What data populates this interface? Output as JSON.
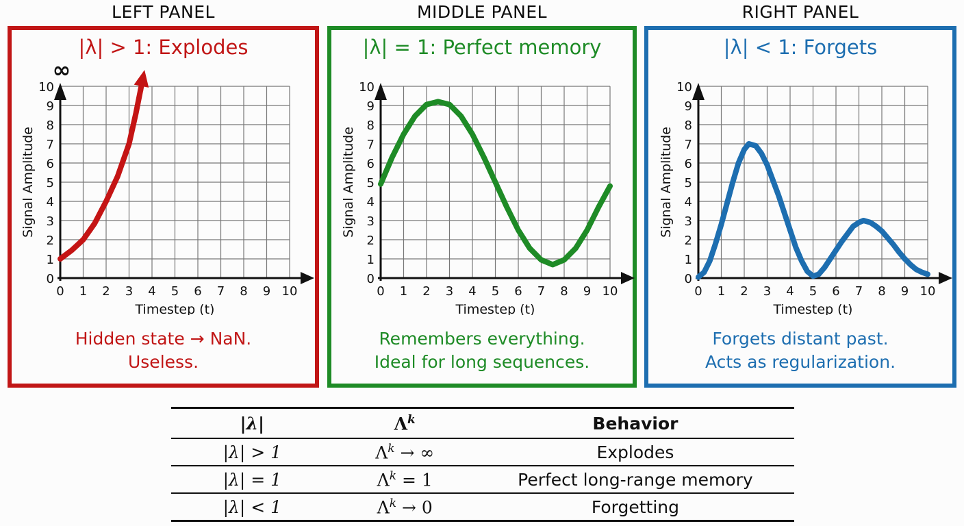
{
  "panels": [
    {
      "header": "LEFT PANEL",
      "title": "|λ| > 1: Explodes",
      "color": "#c11616",
      "caption_line1": "Hidden state → NaN.",
      "caption_line2": "Useless."
    },
    {
      "header": "MIDDLE PANEL",
      "title": "|λ| = 1: Perfect memory",
      "color": "#1e8b26",
      "caption_line1": "Remembers everything.",
      "caption_line2": "Ideal for long sequences."
    },
    {
      "header": "RIGHT PANEL",
      "title": "|λ| < 1: Forgets",
      "color": "#1d6eb0",
      "caption_line1": "Forgets distant past.",
      "caption_line2": "Acts as regularization."
    }
  ],
  "chart_data": [
    {
      "type": "line",
      "title": "|λ| > 1: Explodes",
      "xlabel": "Timestep (t)",
      "ylabel": "Signal Amplitude",
      "xlim": [
        0,
        10
      ],
      "ylim": [
        0,
        10
      ],
      "xticks": [
        0,
        1,
        2,
        3,
        4,
        5,
        6,
        7,
        8,
        9,
        10
      ],
      "yticks": [
        0,
        1,
        2,
        3,
        4,
        5,
        6,
        7,
        8,
        9,
        10
      ],
      "grid": true,
      "legend": "none",
      "color": "#c41414",
      "line_width": 8,
      "end_arrow": true,
      "infinity_label": "∞",
      "x": [
        0,
        0.5,
        1,
        1.5,
        2,
        2.5,
        3,
        3.3,
        3.5
      ],
      "y": [
        1,
        1.45,
        2,
        2.85,
        4,
        5.3,
        7,
        8.6,
        9.8
      ]
    },
    {
      "type": "line",
      "title": "|λ| = 1: Perfect memory",
      "xlabel": "Timestep (t)",
      "ylabel": "Signal Amplitude",
      "xlim": [
        0,
        10
      ],
      "ylim": [
        0,
        10
      ],
      "xticks": [
        0,
        1,
        2,
        3,
        4,
        5,
        6,
        7,
        8,
        9,
        10
      ],
      "yticks": [
        0,
        1,
        2,
        3,
        4,
        5,
        6,
        7,
        8,
        9,
        10
      ],
      "grid": true,
      "legend": "none",
      "color": "#1e8b26",
      "line_width": 8,
      "end_arrow": false,
      "infinity_label": "",
      "x": [
        0,
        0.5,
        1,
        1.5,
        2,
        2.5,
        3,
        3.5,
        4,
        4.5,
        5,
        5.5,
        6,
        6.5,
        7,
        7.5,
        8,
        8.5,
        9,
        9.5,
        10
      ],
      "y": [
        4.9,
        6.3,
        7.5,
        8.45,
        9.05,
        9.2,
        9.05,
        8.45,
        7.5,
        6.3,
        5,
        3.7,
        2.5,
        1.55,
        0.95,
        0.7,
        0.95,
        1.55,
        2.5,
        3.7,
        4.8
      ]
    },
    {
      "type": "line",
      "title": "|λ| < 1: Forgets",
      "xlabel": "Timestep (t)",
      "ylabel": "Signal Amplitude",
      "xlim": [
        0,
        10
      ],
      "ylim": [
        0,
        10
      ],
      "xticks": [
        0,
        1,
        2,
        3,
        4,
        5,
        6,
        7,
        8,
        9,
        10
      ],
      "yticks": [
        0,
        1,
        2,
        3,
        4,
        5,
        6,
        7,
        8,
        9,
        10
      ],
      "grid": true,
      "legend": "none",
      "color": "#1d6eb0",
      "line_width": 8,
      "end_arrow": false,
      "infinity_label": "",
      "x": [
        0,
        0.25,
        0.5,
        0.75,
        1,
        1.25,
        1.5,
        1.75,
        2,
        2.2,
        2.5,
        2.75,
        3,
        3.25,
        3.5,
        3.75,
        4,
        4.25,
        4.5,
        4.75,
        5,
        5.25,
        5.5,
        5.75,
        6,
        6.25,
        6.5,
        6.75,
        7,
        7.2,
        7.5,
        7.75,
        8,
        8.25,
        8.5,
        8.75,
        9,
        9.25,
        9.5,
        9.75,
        10
      ],
      "y": [
        0.05,
        0.3,
        0.9,
        1.8,
        2.8,
        3.9,
        5.0,
        6.0,
        6.7,
        7.0,
        6.9,
        6.5,
        5.9,
        5.1,
        4.3,
        3.4,
        2.5,
        1.6,
        0.9,
        0.35,
        0.1,
        0.2,
        0.55,
        1.0,
        1.45,
        1.9,
        2.3,
        2.7,
        2.9,
        3.0,
        2.9,
        2.7,
        2.45,
        2.1,
        1.75,
        1.35,
        1.0,
        0.7,
        0.45,
        0.3,
        0.2
      ]
    }
  ],
  "table": {
    "headers": {
      "lam": "|λ|",
      "lk_base": "Λ",
      "lk_sup": "k",
      "behavior": "Behavior"
    },
    "rows": [
      {
        "lam": "|λ| > 1",
        "lk_base": "Λ",
        "lk_sup": "k",
        "lk_rest": " → ∞",
        "behavior": "Explodes"
      },
      {
        "lam": "|λ| = 1",
        "lk_base": "Λ",
        "lk_sup": "k",
        "lk_rest": " = 1",
        "behavior": "Perfect long-range memory"
      },
      {
        "lam": "|λ| < 1",
        "lk_base": "Λ",
        "lk_sup": "k",
        "lk_rest": " → 0",
        "behavior": "Forgetting"
      }
    ]
  }
}
